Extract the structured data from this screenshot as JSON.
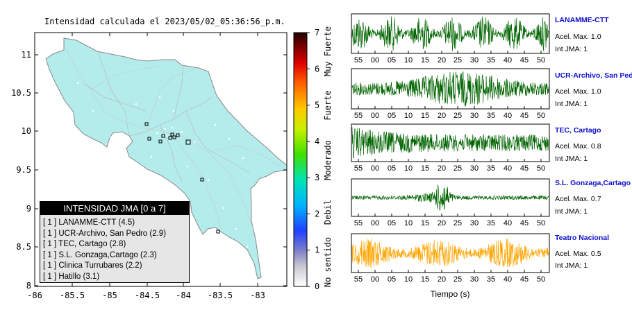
{
  "map": {
    "title": "Intensidad calculada el 2023/05/02_05:36:56_p.m.",
    "lat_ticks": [
      "11",
      "10.5",
      "10",
      "9.5",
      "9",
      "8.5",
      "8"
    ],
    "lon_ticks": [
      "-86",
      "-85.5",
      "-85",
      "-84.5",
      "-84",
      "-83.5",
      "-83"
    ],
    "land_color": "#b4ecec",
    "outside_color": "#ffffff"
  },
  "colorbar": {
    "ticks": [
      "0",
      "1",
      "2",
      "3",
      "4",
      "5",
      "6",
      "7"
    ],
    "labels": [
      "No sentido",
      "Debil",
      "Moderado",
      "Fuerte",
      "Muy Fuerte"
    ]
  },
  "legend": {
    "header": "INTENSIDAD JMA [0 a 7]",
    "items": [
      "[ 1 ]  LANAMME-CTT (4.5)",
      "[ 1 ]  UCR-Archivo, San Pedro (2.9)",
      "[ 1 ]  TEC, Cartago (2.8)",
      "[ 1 ]  S.L. Gonzaga,Cartago (2.3)",
      "[ 1 ]  Clinica Turrubares (2.2)",
      "[ 1 ]  Hatillo (3.1)"
    ]
  },
  "stations": [
    {
      "name": "LANAMME-CTT",
      "accel": "Acel. Max. 1.0",
      "int": "Int JMA: 1",
      "color": "#006400",
      "ticks": [
        "55",
        "00",
        "05",
        "10",
        "15",
        "20",
        "25",
        "30",
        "35",
        "40",
        "45",
        "50"
      ]
    },
    {
      "name": "UCR-Archivo, San Pedro",
      "accel": "Acel. Max. 1.0",
      "int": "Int JMA: 1",
      "color": "#006400",
      "ticks": [
        "55",
        "00",
        "05",
        "10",
        "15",
        "20",
        "25",
        "30",
        "35",
        "40",
        "45",
        "50"
      ]
    },
    {
      "name": "TEC, Cartago",
      "accel": "Acel. Max. 0.8",
      "int": "Int JMA: 1",
      "color": "#006400",
      "ticks": [
        "55",
        "00",
        "05",
        "10",
        "15",
        "20",
        "25",
        "30",
        "35",
        "40",
        "45",
        "50"
      ]
    },
    {
      "name": "S.L. Gonzaga,Cartago",
      "accel": "Acel. Max. 0.7",
      "int": "Int JMA: 1",
      "color": "#006400",
      "ticks": [
        "55",
        "00",
        "05",
        "10",
        "15",
        "20",
        "25",
        "30",
        "35",
        "40",
        "45",
        "50"
      ]
    },
    {
      "name": "Teatro Nacional",
      "accel": "Acel. Max. 0.5",
      "int": "Int JMA: 1",
      "color": "#ffa500",
      "ticks": [
        "55",
        "00",
        "05",
        "10",
        "15",
        "20",
        "25",
        "30",
        "35",
        "40",
        "45",
        "50"
      ]
    }
  ],
  "traces": {
    "xlabel": "Tiempo (s)"
  }
}
